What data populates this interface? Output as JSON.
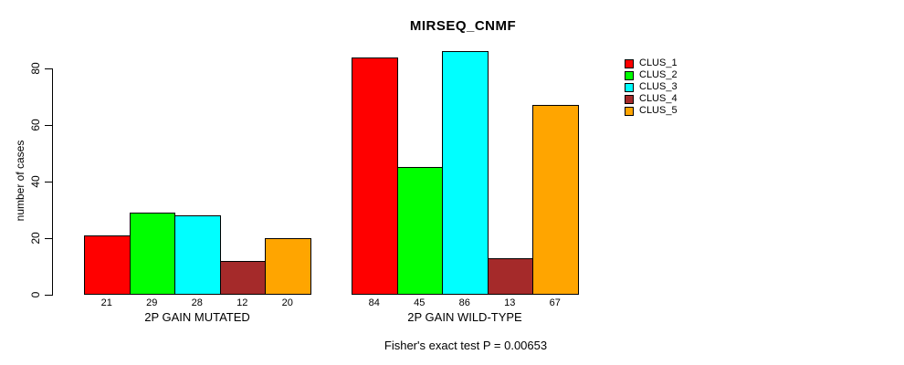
{
  "chart_data": {
    "type": "bar",
    "title": "MIRSEQ_CNMF",
    "ylabel": "number of cases",
    "xlabel": "",
    "ylim": [
      0,
      86
    ],
    "yticks": [
      0,
      20,
      40,
      60,
      80
    ],
    "grid": false,
    "legend_position": "right-outside",
    "categories": [
      "2P GAIN MUTATED",
      "2P GAIN WILD-TYPE"
    ],
    "series": [
      {
        "name": "CLUS_1",
        "color": "#ff0000",
        "values": [
          21,
          84
        ]
      },
      {
        "name": "CLUS_2",
        "color": "#00ff00",
        "values": [
          29,
          45
        ]
      },
      {
        "name": "CLUS_3",
        "color": "#00ffff",
        "values": [
          28,
          86
        ]
      },
      {
        "name": "CLUS_4",
        "color": "#a52a2a",
        "values": [
          12,
          13
        ]
      },
      {
        "name": "CLUS_5",
        "color": "#ffa500",
        "values": [
          20,
          67
        ]
      }
    ],
    "bar_value_labels_shown": true,
    "footer": "Fisher's exact test P = 0.00653"
  }
}
